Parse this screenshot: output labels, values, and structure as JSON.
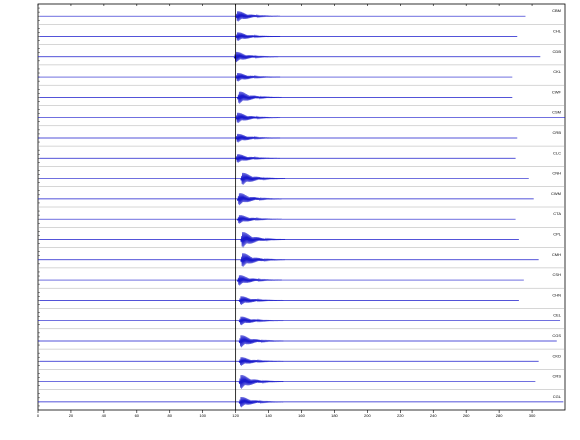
{
  "chart_data": {
    "type": "seismogram",
    "color": "#1a1acc",
    "xlim": [
      0,
      320
    ],
    "xticks": [
      0,
      20,
      40,
      60,
      80,
      100,
      120,
      140,
      160,
      180,
      200,
      220,
      240,
      260,
      280,
      300
    ],
    "pick_time": 120,
    "traces": [
      {
        "name": "CBM",
        "start": 1,
        "end": 296,
        "arrival": 120,
        "amplitude": 0.6
      },
      {
        "name": "CHL",
        "start": 1,
        "end": 291,
        "arrival": 120,
        "amplitude": 0.5
      },
      {
        "name": "CDB",
        "start": 0,
        "end": 305,
        "arrival": 119,
        "amplitude": 0.6
      },
      {
        "name": "CKL",
        "start": 0,
        "end": 288,
        "arrival": 120,
        "amplitude": 0.5
      },
      {
        "name": "CWF",
        "start": 1,
        "end": 288,
        "arrival": 121,
        "amplitude": 0.7
      },
      {
        "name": "CSM",
        "start": 0,
        "end": 320,
        "arrival": 120,
        "amplitude": 0.6
      },
      {
        "name": "CRB",
        "start": 0,
        "end": 291,
        "arrival": 120,
        "amplitude": 0.5
      },
      {
        "name": "CLC",
        "start": 1,
        "end": 290,
        "arrival": 120,
        "amplitude": 0.5
      },
      {
        "name": "CNH",
        "start": 1,
        "end": 298,
        "arrival": 123,
        "amplitude": 0.7
      },
      {
        "name": "CWM",
        "start": 0,
        "end": 301,
        "arrival": 121,
        "amplitude": 0.7
      },
      {
        "name": "CTA",
        "start": 1,
        "end": 290,
        "arrival": 121,
        "amplitude": 0.5
      },
      {
        "name": "CPL",
        "start": 1,
        "end": 292,
        "arrival": 123,
        "amplitude": 0.9
      },
      {
        "name": "CMH",
        "start": 0,
        "end": 304,
        "arrival": 123,
        "amplitude": 0.8
      },
      {
        "name": "CSH",
        "start": 1,
        "end": 295,
        "arrival": 121,
        "amplitude": 0.6
      },
      {
        "name": "CHN",
        "start": 1,
        "end": 292,
        "arrival": 122,
        "amplitude": 0.5
      },
      {
        "name": "CEL",
        "start": 0,
        "end": 317,
        "arrival": 122,
        "amplitude": 0.5
      },
      {
        "name": "CGS",
        "start": 0,
        "end": 315,
        "arrival": 122,
        "amplitude": 0.7
      },
      {
        "name": "CKD",
        "start": 1,
        "end": 304,
        "arrival": 122,
        "amplitude": 0.5
      },
      {
        "name": "CRS",
        "start": 1,
        "end": 302,
        "arrival": 122,
        "amplitude": 0.8
      },
      {
        "name": "CGL",
        "start": 0,
        "end": 319,
        "arrival": 122,
        "amplitude": 0.6
      }
    ]
  }
}
